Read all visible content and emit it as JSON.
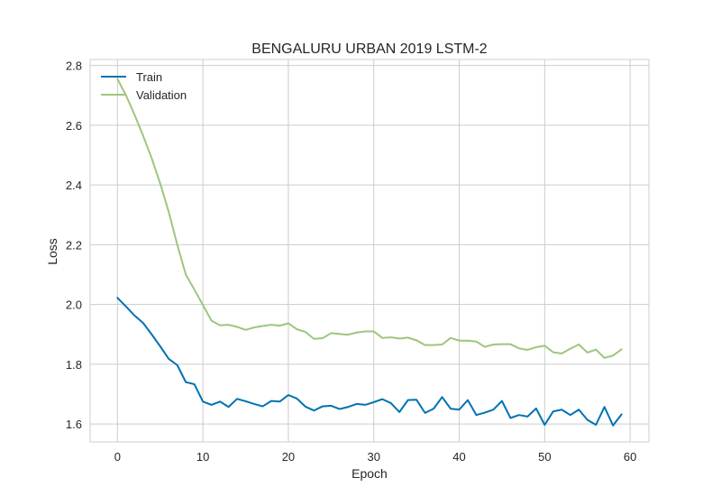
{
  "chart_data": {
    "type": "line",
    "title": "BENGALURU URBAN 2019 LSTM-2",
    "xlabel": "Epoch",
    "ylabel": "Loss",
    "xlim": [
      -3.2,
      62.2
    ],
    "ylim": [
      1.54,
      2.82
    ],
    "xticks": [
      0,
      10,
      20,
      30,
      40,
      50,
      60
    ],
    "yticks": [
      1.6,
      1.8,
      2.0,
      2.2,
      2.4,
      2.6,
      2.8
    ],
    "ytick_labels": [
      "1.6",
      "1.8",
      "2.0",
      "2.2",
      "2.4",
      "2.6",
      "2.8"
    ],
    "grid": true,
    "legend_position": "top-left",
    "x": [
      0,
      1,
      2,
      3,
      4,
      5,
      6,
      7,
      8,
      9,
      10,
      11,
      12,
      13,
      14,
      15,
      16,
      17,
      18,
      19,
      20,
      21,
      22,
      23,
      24,
      25,
      26,
      27,
      28,
      29,
      30,
      31,
      32,
      33,
      34,
      35,
      36,
      37,
      38,
      39,
      40,
      41,
      42,
      43,
      44,
      45,
      46,
      47,
      48,
      49,
      50,
      51,
      52,
      53,
      54,
      55,
      56,
      57,
      58,
      59
    ],
    "series": [
      {
        "name": "Train",
        "color": "#0072b2",
        "values": [
          2.022,
          1.993,
          1.963,
          1.938,
          1.9,
          1.86,
          1.818,
          1.797,
          1.74,
          1.733,
          1.675,
          1.664,
          1.675,
          1.657,
          1.684,
          1.676,
          1.667,
          1.659,
          1.677,
          1.675,
          1.697,
          1.685,
          1.658,
          1.645,
          1.659,
          1.661,
          1.65,
          1.657,
          1.667,
          1.664,
          1.673,
          1.683,
          1.67,
          1.64,
          1.68,
          1.681,
          1.637,
          1.651,
          1.69,
          1.651,
          1.648,
          1.68,
          1.63,
          1.638,
          1.648,
          1.677,
          1.62,
          1.63,
          1.625,
          1.652,
          1.597,
          1.642,
          1.648,
          1.63,
          1.648,
          1.614,
          1.597,
          1.657,
          1.595,
          1.632
        ]
      },
      {
        "name": "Validation",
        "color": "#9dc67e",
        "values": [
          2.755,
          2.7,
          2.635,
          2.565,
          2.49,
          2.405,
          2.31,
          2.2,
          2.1,
          2.05,
          1.998,
          1.946,
          1.93,
          1.932,
          1.925,
          1.915,
          1.923,
          1.928,
          1.932,
          1.929,
          1.937,
          1.917,
          1.908,
          1.885,
          1.887,
          1.904,
          1.901,
          1.899,
          1.906,
          1.91,
          1.91,
          1.888,
          1.89,
          1.886,
          1.889,
          1.88,
          1.864,
          1.864,
          1.866,
          1.888,
          1.879,
          1.879,
          1.876,
          1.858,
          1.866,
          1.867,
          1.867,
          1.853,
          1.848,
          1.857,
          1.862,
          1.84,
          1.836,
          1.852,
          1.866,
          1.839,
          1.849,
          1.821,
          1.829,
          1.85
        ]
      }
    ]
  }
}
